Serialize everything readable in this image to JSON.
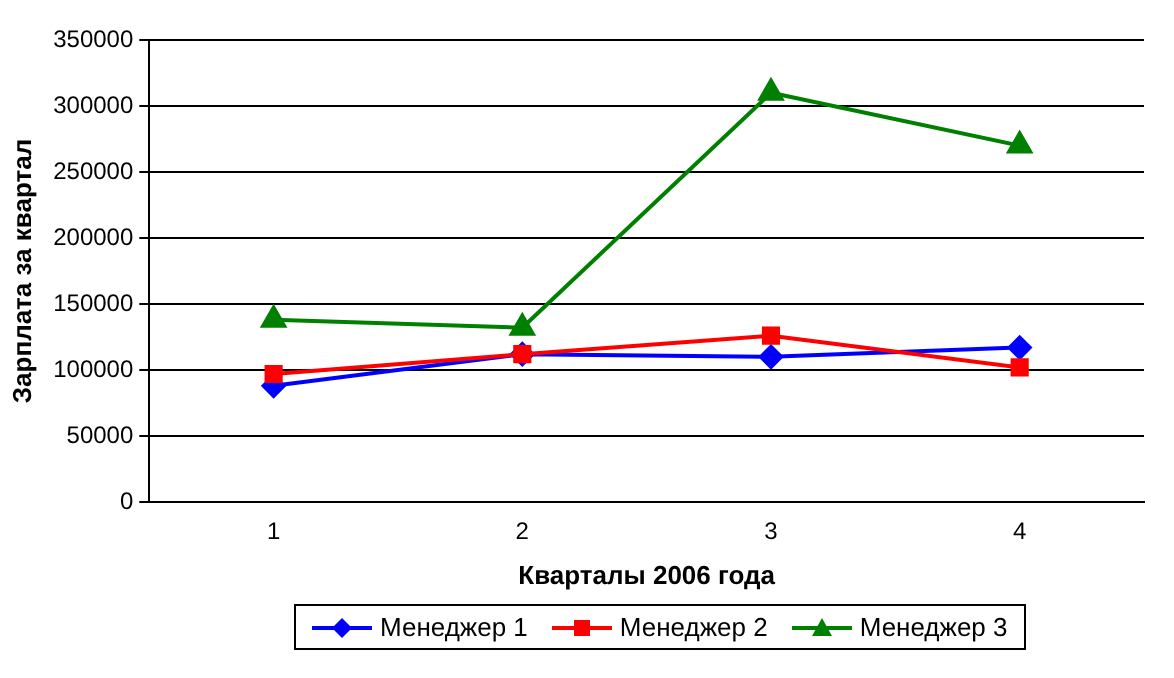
{
  "chart_data": {
    "type": "line",
    "xlabel": "Кварталы 2006 года",
    "ylabel": "Зарплата за квартал",
    "categories": [
      "1",
      "2",
      "3",
      "4"
    ],
    "series": [
      {
        "name": "Менеджер 1",
        "color": "#0000ff",
        "marker": "diamond",
        "values": [
          88000,
          112000,
          110000,
          117000
        ]
      },
      {
        "name": "Менеджер 2",
        "color": "#ff0000",
        "marker": "square",
        "values": [
          97000,
          112000,
          126000,
          102000
        ]
      },
      {
        "name": "Менеджер 3",
        "color": "#008000",
        "marker": "triangle",
        "values": [
          138000,
          132000,
          310000,
          270000
        ]
      }
    ],
    "ylim": [
      0,
      350000
    ],
    "yticks": [
      0,
      50000,
      100000,
      150000,
      200000,
      250000,
      300000,
      350000
    ],
    "grid": "y",
    "legend": "bottom"
  }
}
